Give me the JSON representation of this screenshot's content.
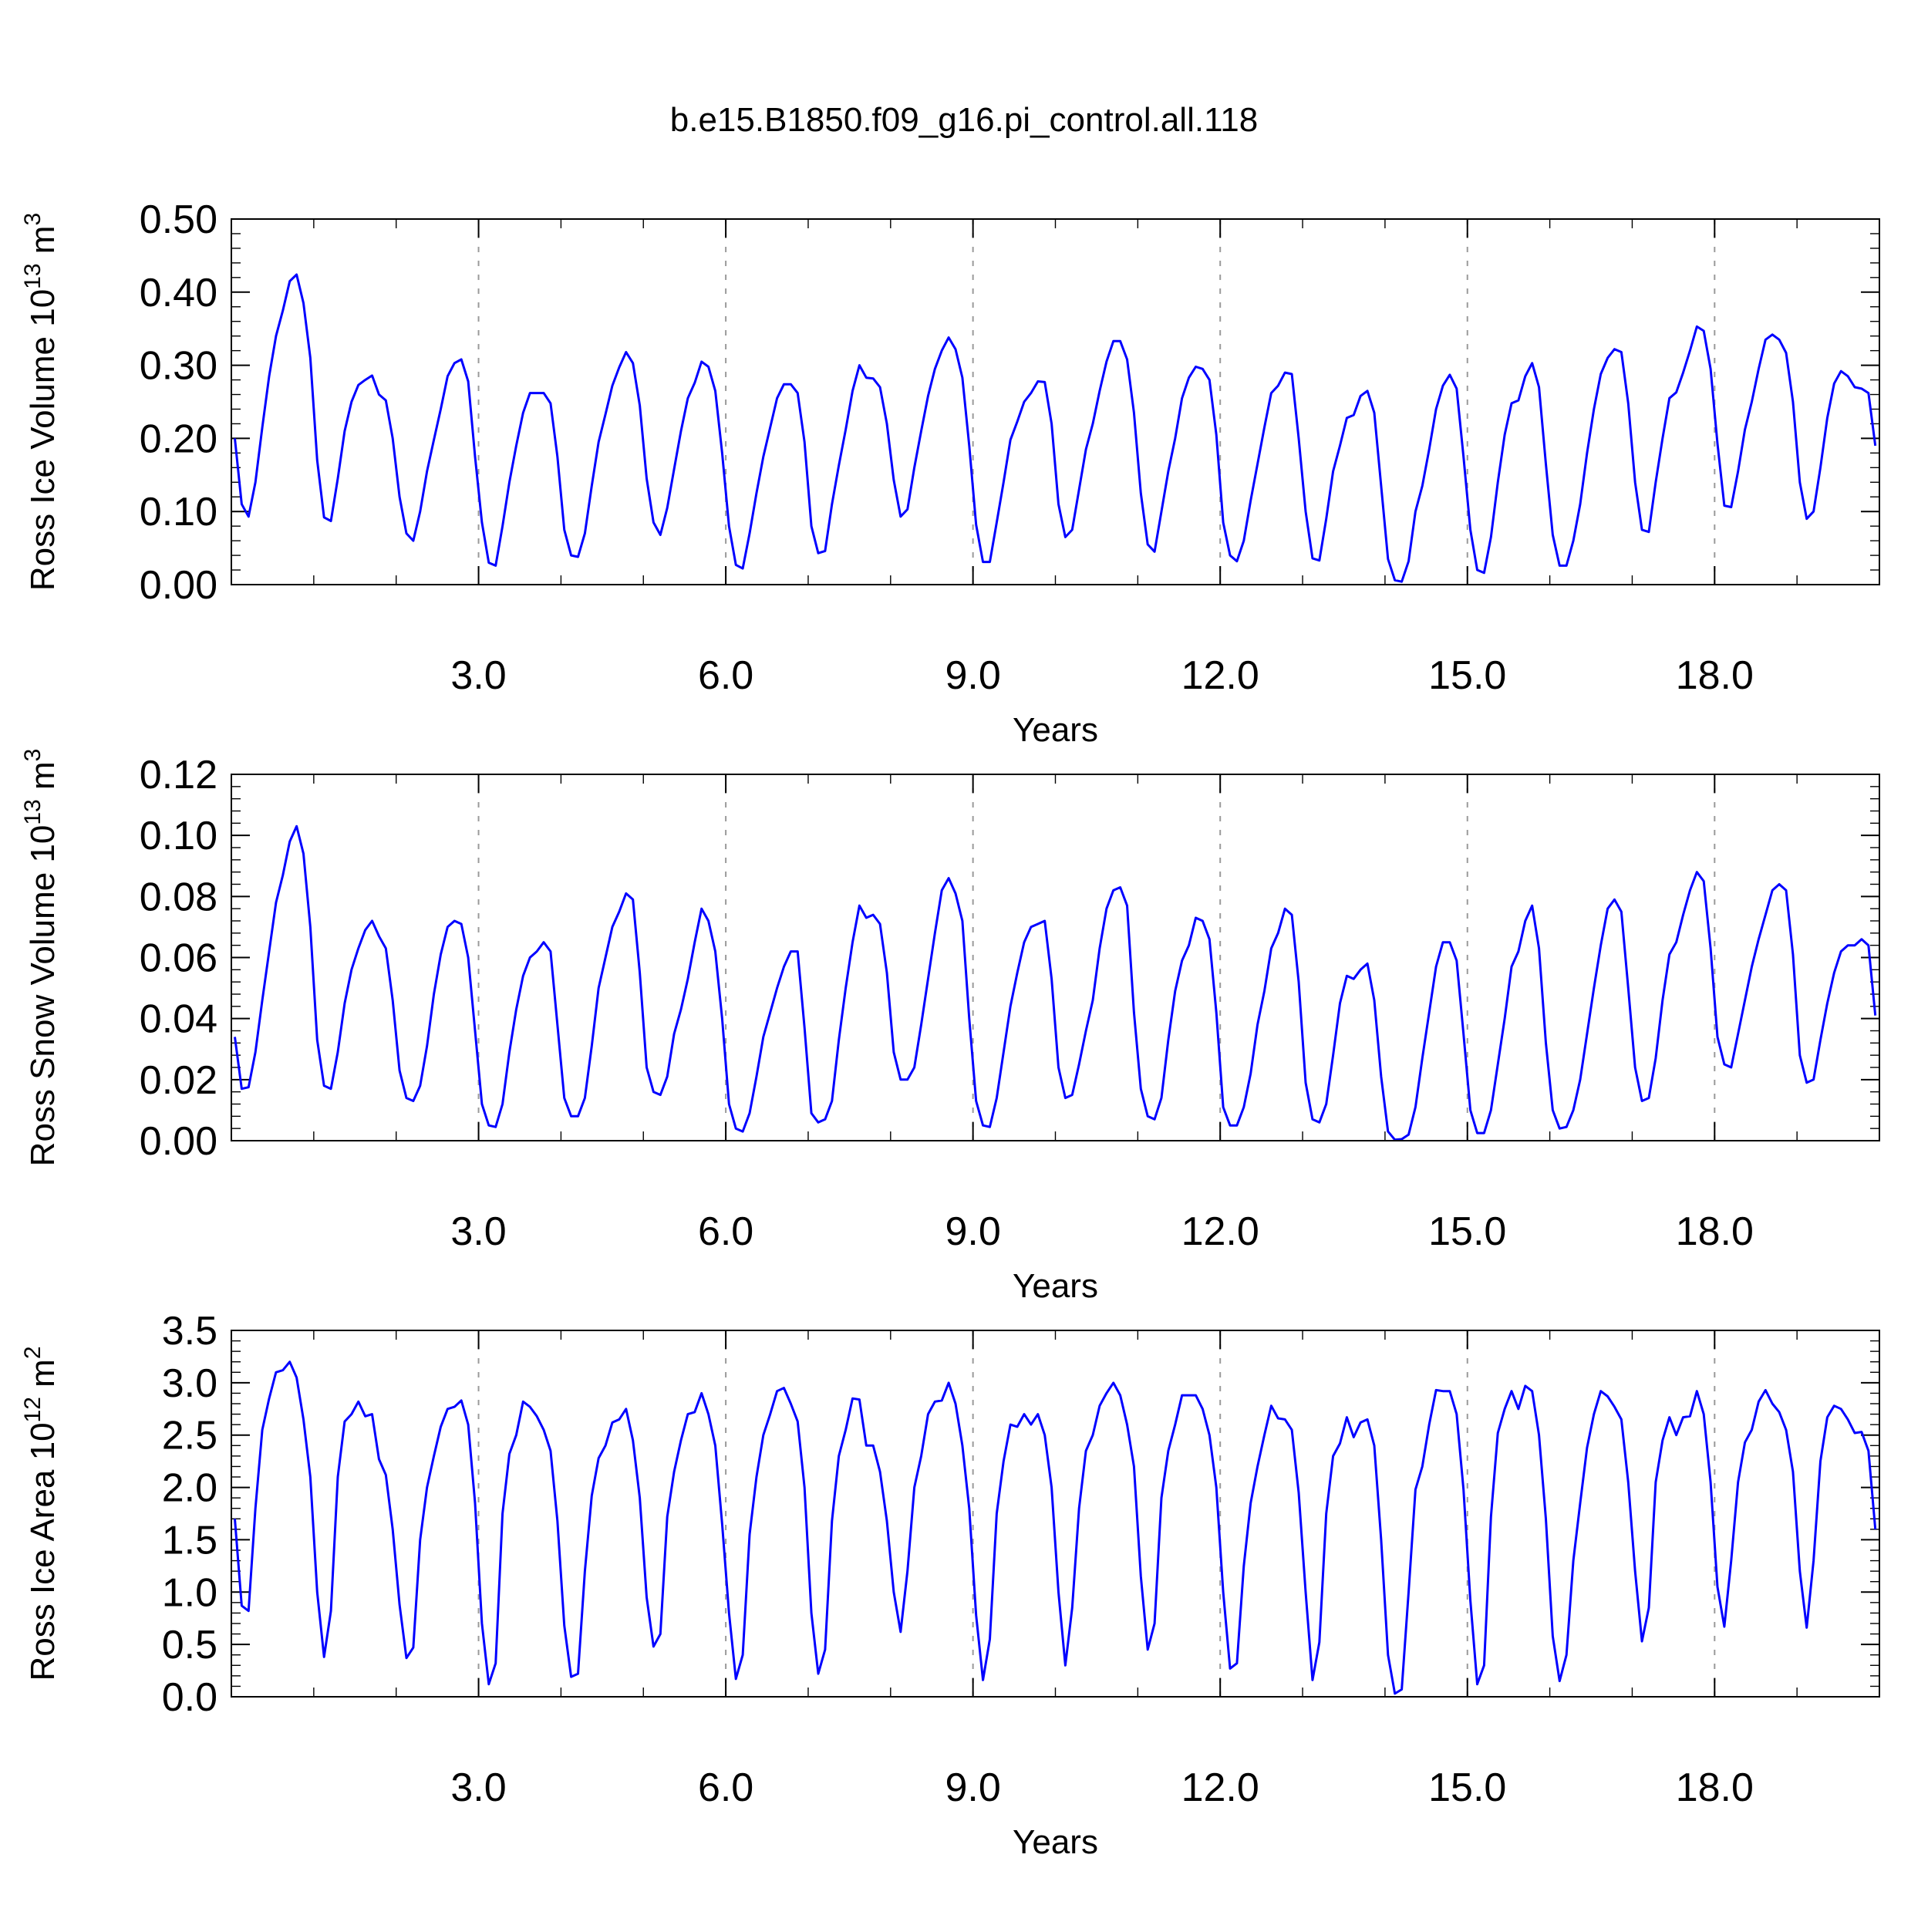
{
  "figure_title": "b.e15.B1850.f09_g16.pi_control.all.118",
  "chart_data": [
    {
      "type": "line",
      "title": "",
      "xlabel": "Years",
      "ylabel": "Ross Ice Volume 10",
      "ylabel_exponent": "13",
      "ylabel_unit": " m",
      "ylabel_unit_exponent": "3",
      "xlim": [
        0.0,
        20.0
      ],
      "ylim": [
        0.0,
        0.5
      ],
      "yticks": [
        "0.00",
        "0.10",
        "0.20",
        "0.30",
        "0.40",
        "0.50"
      ],
      "xticks": [
        "3.0",
        "6.0",
        "9.0",
        "12.0",
        "15.0",
        "18.0"
      ],
      "grid": "vertical dashed at x ticks",
      "series_color": "#0000ff",
      "series": [
        {
          "x_start": 0.0417,
          "x_step": 0.0833,
          "values": [
            0.2,
            0.11,
            0.093,
            0.14,
            0.215,
            0.285,
            0.34,
            0.375,
            0.415,
            0.424,
            0.385,
            0.31,
            0.17,
            0.092,
            0.087,
            0.145,
            0.21,
            0.25,
            0.273,
            0.28,
            0.286,
            0.26,
            0.252,
            0.2,
            0.12,
            0.07,
            0.06,
            0.1,
            0.155,
            0.198,
            0.24,
            0.285,
            0.303,
            0.308,
            0.278,
            0.175,
            0.085,
            0.03,
            0.026,
            0.08,
            0.14,
            0.19,
            0.235,
            0.262,
            0.262,
            0.262,
            0.248,
            0.175,
            0.075,
            0.04,
            0.038,
            0.07,
            0.135,
            0.195,
            0.233,
            0.272,
            0.297,
            0.318,
            0.303,
            0.245,
            0.145,
            0.085,
            0.068,
            0.105,
            0.158,
            0.21,
            0.255,
            0.276,
            0.305,
            0.298,
            0.265,
            0.18,
            0.08,
            0.027,
            0.022,
            0.07,
            0.125,
            0.175,
            0.215,
            0.255,
            0.274,
            0.274,
            0.262,
            0.195,
            0.08,
            0.043,
            0.046,
            0.11,
            0.163,
            0.212,
            0.265,
            0.3,
            0.283,
            0.282,
            0.27,
            0.22,
            0.143,
            0.093,
            0.103,
            0.16,
            0.21,
            0.258,
            0.295,
            0.32,
            0.338,
            0.322,
            0.283,
            0.19,
            0.082,
            0.031,
            0.031,
            0.085,
            0.14,
            0.198,
            0.223,
            0.25,
            0.262,
            0.278,
            0.277,
            0.22,
            0.11,
            0.065,
            0.075,
            0.13,
            0.185,
            0.22,
            0.265,
            0.305,
            0.333,
            0.333,
            0.308,
            0.235,
            0.125,
            0.055,
            0.045,
            0.1,
            0.155,
            0.2,
            0.255,
            0.283,
            0.298,
            0.295,
            0.28,
            0.205,
            0.085,
            0.04,
            0.032,
            0.06,
            0.115,
            0.165,
            0.215,
            0.262,
            0.272,
            0.29,
            0.288,
            0.2,
            0.1,
            0.036,
            0.033,
            0.09,
            0.155,
            0.19,
            0.228,
            0.232,
            0.258,
            0.265,
            0.235,
            0.135,
            0.035,
            0.006,
            0.004,
            0.032,
            0.1,
            0.135,
            0.185,
            0.24,
            0.272,
            0.287,
            0.268,
            0.175,
            0.075,
            0.02,
            0.016,
            0.065,
            0.14,
            0.205,
            0.248,
            0.252,
            0.285,
            0.303,
            0.27,
            0.165,
            0.068,
            0.026,
            0.026,
            0.06,
            0.11,
            0.18,
            0.24,
            0.288,
            0.31,
            0.322,
            0.318,
            0.248,
            0.14,
            0.075,
            0.072,
            0.14,
            0.2,
            0.255,
            0.263,
            0.29,
            0.32,
            0.353,
            0.347,
            0.295,
            0.193,
            0.108,
            0.106,
            0.155,
            0.212,
            0.25,
            0.295,
            0.335,
            0.342,
            0.335,
            0.317,
            0.25,
            0.14,
            0.09,
            0.1,
            0.16,
            0.228,
            0.275,
            0.292,
            0.285,
            0.27,
            0.268,
            0.262,
            0.19
          ]
        }
      ]
    },
    {
      "type": "line",
      "title": "",
      "xlabel": "Years",
      "ylabel": "Ross Snow Volume 10",
      "ylabel_exponent": "13",
      "ylabel_unit": " m",
      "ylabel_unit_exponent": "3",
      "xlim": [
        0.0,
        20.0
      ],
      "ylim": [
        0.0,
        0.12
      ],
      "yticks": [
        "0.00",
        "0.02",
        "0.04",
        "0.06",
        "0.08",
        "0.10",
        "0.12"
      ],
      "xticks": [
        "3.0",
        "6.0",
        "9.0",
        "12.0",
        "15.0",
        "18.0"
      ],
      "grid": "vertical dashed at x ticks",
      "series_color": "#0000ff",
      "series": [
        {
          "x_start": 0.0417,
          "x_step": 0.0833,
          "values": [
            0.034,
            0.017,
            0.0175,
            0.029,
            0.046,
            0.062,
            0.078,
            0.087,
            0.098,
            0.103,
            0.094,
            0.07,
            0.033,
            0.018,
            0.017,
            0.029,
            0.045,
            0.056,
            0.063,
            0.069,
            0.072,
            0.067,
            0.063,
            0.046,
            0.023,
            0.014,
            0.013,
            0.018,
            0.031,
            0.048,
            0.061,
            0.07,
            0.072,
            0.071,
            0.06,
            0.036,
            0.012,
            0.005,
            0.0045,
            0.012,
            0.029,
            0.043,
            0.054,
            0.06,
            0.062,
            0.065,
            0.062,
            0.038,
            0.014,
            0.008,
            0.008,
            0.014,
            0.031,
            0.05,
            0.06,
            0.07,
            0.075,
            0.081,
            0.079,
            0.055,
            0.024,
            0.016,
            0.015,
            0.021,
            0.035,
            0.043,
            0.053,
            0.065,
            0.076,
            0.072,
            0.062,
            0.04,
            0.012,
            0.004,
            0.003,
            0.009,
            0.021,
            0.034,
            0.042,
            0.05,
            0.057,
            0.062,
            0.062,
            0.037,
            0.009,
            0.006,
            0.007,
            0.013,
            0.033,
            0.05,
            0.065,
            0.077,
            0.073,
            0.074,
            0.071,
            0.055,
            0.029,
            0.02,
            0.02,
            0.024,
            0.038,
            0.053,
            0.068,
            0.082,
            0.086,
            0.081,
            0.072,
            0.04,
            0.013,
            0.005,
            0.0045,
            0.014,
            0.029,
            0.044,
            0.055,
            0.065,
            0.07,
            0.071,
            0.072,
            0.053,
            0.024,
            0.014,
            0.015,
            0.025,
            0.036,
            0.046,
            0.063,
            0.076,
            0.082,
            0.083,
            0.077,
            0.042,
            0.017,
            0.008,
            0.007,
            0.014,
            0.033,
            0.049,
            0.059,
            0.064,
            0.073,
            0.072,
            0.066,
            0.042,
            0.011,
            0.005,
            0.005,
            0.011,
            0.022,
            0.038,
            0.049,
            0.063,
            0.068,
            0.076,
            0.074,
            0.052,
            0.019,
            0.007,
            0.006,
            0.012,
            0.028,
            0.045,
            0.054,
            0.053,
            0.056,
            0.058,
            0.046,
            0.021,
            0.003,
            0.0003,
            0.0005,
            0.002,
            0.011,
            0.027,
            0.042,
            0.057,
            0.065,
            0.065,
            0.059,
            0.035,
            0.01,
            0.0025,
            0.0025,
            0.01,
            0.025,
            0.04,
            0.057,
            0.062,
            0.072,
            0.077,
            0.063,
            0.032,
            0.01,
            0.004,
            0.0045,
            0.01,
            0.02,
            0.035,
            0.05,
            0.064,
            0.076,
            0.079,
            0.075,
            0.05,
            0.024,
            0.013,
            0.014,
            0.027,
            0.046,
            0.061,
            0.065,
            0.074,
            0.082,
            0.088,
            0.085,
            0.063,
            0.034,
            0.025,
            0.024,
            0.035,
            0.046,
            0.057,
            0.066,
            0.074,
            0.082,
            0.084,
            0.082,
            0.061,
            0.028,
            0.019,
            0.02,
            0.033,
            0.045,
            0.055,
            0.062,
            0.064,
            0.064,
            0.066,
            0.064,
            0.041
          ]
        }
      ]
    },
    {
      "type": "line",
      "title": "",
      "xlabel": "Years",
      "ylabel": "Ross Ice Area 10",
      "ylabel_exponent": "12",
      "ylabel_unit": " m",
      "ylabel_unit_exponent": "2",
      "xlim": [
        0.0,
        20.0
      ],
      "ylim": [
        0.0,
        3.5
      ],
      "yticks": [
        "0.0",
        "0.5",
        "1.0",
        "1.5",
        "2.0",
        "2.5",
        "3.0",
        "3.5"
      ],
      "xticks": [
        "3.0",
        "6.0",
        "9.0",
        "12.0",
        "15.0",
        "18.0"
      ],
      "grid": "vertical dashed at x ticks",
      "series_color": "#0000ff",
      "series": [
        {
          "x_start": 0.0417,
          "x_step": 0.0833,
          "values": [
            1.7,
            0.87,
            0.82,
            1.8,
            2.55,
            2.85,
            3.1,
            3.12,
            3.2,
            3.05,
            2.65,
            2.1,
            1.0,
            0.38,
            0.82,
            2.1,
            2.63,
            2.7,
            2.82,
            2.68,
            2.7,
            2.27,
            2.12,
            1.6,
            0.88,
            0.37,
            0.47,
            1.5,
            2.0,
            2.3,
            2.58,
            2.75,
            2.77,
            2.83,
            2.6,
            1.85,
            0.7,
            0.12,
            0.32,
            1.75,
            2.32,
            2.5,
            2.82,
            2.77,
            2.68,
            2.55,
            2.35,
            1.68,
            0.68,
            0.19,
            0.22,
            1.2,
            1.92,
            2.28,
            2.4,
            2.62,
            2.65,
            2.75,
            2.45,
            1.9,
            0.95,
            0.48,
            0.6,
            1.72,
            2.15,
            2.45,
            2.7,
            2.72,
            2.9,
            2.7,
            2.4,
            1.65,
            0.8,
            0.17,
            0.4,
            1.55,
            2.1,
            2.5,
            2.7,
            2.92,
            2.95,
            2.8,
            2.63,
            2.0,
            0.8,
            0.22,
            0.45,
            1.68,
            2.3,
            2.55,
            2.85,
            2.84,
            2.4,
            2.4,
            2.15,
            1.68,
            1.0,
            0.62,
            1.2,
            2.0,
            2.3,
            2.7,
            2.82,
            2.83,
            3.0,
            2.8,
            2.4,
            1.8,
            0.78,
            0.16,
            0.55,
            1.75,
            2.25,
            2.6,
            2.58,
            2.7,
            2.6,
            2.7,
            2.5,
            2.0,
            1.0,
            0.3,
            0.85,
            1.8,
            2.35,
            2.5,
            2.78,
            2.9,
            3.0,
            2.88,
            2.6,
            2.2,
            1.15,
            0.45,
            0.7,
            1.9,
            2.35,
            2.6,
            2.88,
            2.88,
            2.88,
            2.75,
            2.5,
            2.0,
            1.0,
            0.27,
            0.32,
            1.25,
            1.85,
            2.2,
            2.5,
            2.78,
            2.66,
            2.65,
            2.55,
            1.95,
            1.0,
            0.16,
            0.52,
            1.75,
            2.3,
            2.42,
            2.67,
            2.48,
            2.62,
            2.65,
            2.4,
            1.5,
            0.4,
            0.03,
            0.07,
            1.0,
            1.98,
            2.2,
            2.6,
            2.93,
            2.92,
            2.92,
            2.7,
            1.98,
            0.92,
            0.12,
            0.3,
            1.72,
            2.52,
            2.75,
            2.92,
            2.75,
            2.97,
            2.92,
            2.5,
            1.7,
            0.58,
            0.15,
            0.4,
            1.3,
            1.85,
            2.38,
            2.7,
            2.92,
            2.87,
            2.77,
            2.65,
            2.05,
            1.2,
            0.53,
            0.85,
            2.05,
            2.45,
            2.67,
            2.5,
            2.67,
            2.68,
            2.92,
            2.7,
            2.05,
            1.05,
            0.67,
            1.3,
            2.05,
            2.43,
            2.55,
            2.82,
            2.93,
            2.8,
            2.72,
            2.55,
            2.15,
            1.2,
            0.66,
            1.3,
            2.25,
            2.67,
            2.78,
            2.75,
            2.65,
            2.52,
            2.53,
            2.35,
            1.6
          ]
        }
      ]
    }
  ]
}
